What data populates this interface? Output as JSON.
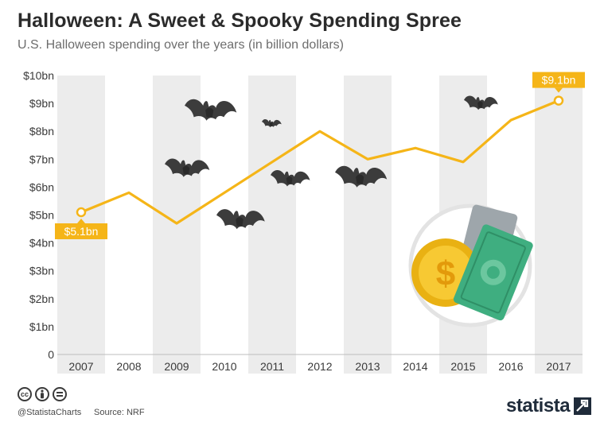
{
  "header": {
    "title": "Halloween: A Sweet & Spooky Spending Spree",
    "subtitle": "U.S. Halloween spending over the years (in billion dollars)"
  },
  "chart_data": {
    "type": "line",
    "title": "Halloween: A Sweet & Spooky Spending Spree",
    "subtitle": "U.S. Halloween spending over the years (in billion dollars)",
    "xlabel": "",
    "ylabel": "",
    "categories": [
      "2007",
      "2008",
      "2009",
      "2010",
      "2011",
      "2012",
      "2013",
      "2014",
      "2015",
      "2016",
      "2017"
    ],
    "series": [
      {
        "values": [
          5.1,
          5.8,
          4.7,
          5.8,
          6.9,
          8.0,
          7.0,
          7.4,
          6.9,
          8.4,
          9.1
        ]
      }
    ],
    "ylim": [
      0,
      10
    ],
    "yticks": [
      {
        "value": 0,
        "label": "0"
      },
      {
        "value": 1,
        "label": "$1bn"
      },
      {
        "value": 2,
        "label": "$2bn"
      },
      {
        "value": 3,
        "label": "$3bn"
      },
      {
        "value": 4,
        "label": "$4bn"
      },
      {
        "value": 5,
        "label": "$5bn"
      },
      {
        "value": 6,
        "label": "$6bn"
      },
      {
        "value": 7,
        "label": "$7bn"
      },
      {
        "value": 8,
        "label": "$8bn"
      },
      {
        "value": 9,
        "label": "$9bn"
      },
      {
        "value": 10,
        "label": "$10bn"
      }
    ],
    "annotations": [
      {
        "category": "2007",
        "label": "$5.1bn"
      },
      {
        "category": "2017",
        "label": "$9.1bn"
      }
    ],
    "grid": "alternating column bands",
    "legend": "none",
    "line_color": "#f5b518",
    "band_color": "#ececec"
  },
  "footer": {
    "license_icons": [
      "creative-commons-icon",
      "attribution-icon",
      "no-derivatives-icon"
    ],
    "handle": "@StatistaCharts",
    "source": "Source: NRF",
    "brand": "statista"
  },
  "decorations": [
    "bat-icon",
    "coin-icon",
    "banknote-icon"
  ]
}
